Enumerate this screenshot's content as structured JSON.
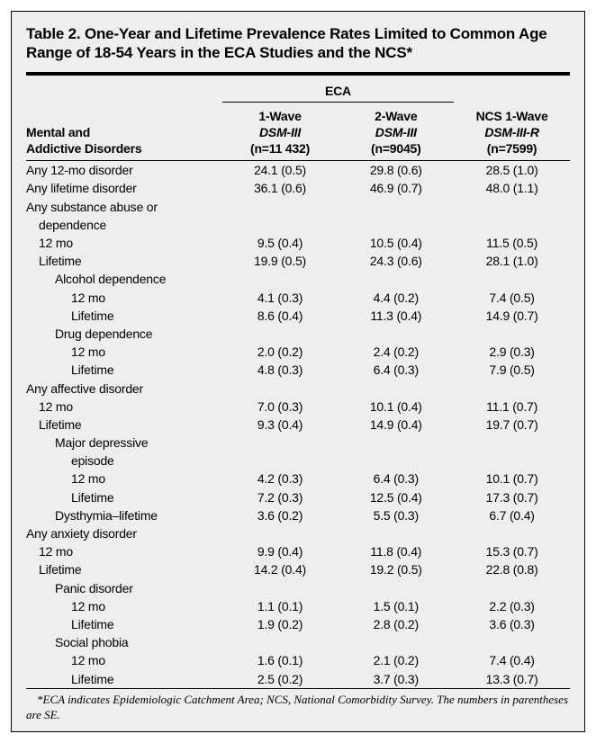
{
  "title": "Table 2. One-Year and Lifetime Prevalence Rates Limited to Common Age Range of 18-54 Years in the ECA Studies and the NCS*",
  "spanner": "ECA",
  "rowhead": [
    "Mental and",
    "Addictive Disorders"
  ],
  "cols": [
    {
      "l1": "1-Wave",
      "l2": "DSM-III",
      "l3": "(n=11 432)"
    },
    {
      "l1": "2-Wave",
      "l2": "DSM-III",
      "l3": "(n=9045)"
    },
    {
      "l1": "NCS 1-Wave",
      "l2": "DSM-III-R",
      "l3": "(n=7599)"
    }
  ],
  "rows": [
    {
      "label": "Any 12-mo disorder",
      "ind": 0,
      "v": [
        "24.1 (0.5)",
        "29.8 (0.6)",
        "28.5 (1.0)"
      ]
    },
    {
      "label": "Any lifetime disorder",
      "ind": 0,
      "v": [
        "36.1 (0.6)",
        "46.9 (0.7)",
        "48.0 (1.1)"
      ]
    },
    {
      "label": "Any substance abuse or",
      "ind": 0,
      "v": [
        "",
        "",
        ""
      ]
    },
    {
      "label": "dependence",
      "ind": 1,
      "v": [
        "",
        "",
        ""
      ]
    },
    {
      "label": "12 mo",
      "ind": 1,
      "v": [
        "9.5 (0.4)",
        "10.5 (0.4)",
        "11.5 (0.5)"
      ]
    },
    {
      "label": "Lifetime",
      "ind": 1,
      "v": [
        "19.9 (0.5)",
        "24.3 (0.6)",
        "28.1 (1.0)"
      ]
    },
    {
      "label": "Alcohol dependence",
      "ind": 2,
      "v": [
        "",
        "",
        ""
      ]
    },
    {
      "label": "12 mo",
      "ind": 3,
      "v": [
        "4.1 (0.3)",
        "4.4 (0.2)",
        "7.4 (0.5)"
      ]
    },
    {
      "label": "Lifetime",
      "ind": 3,
      "v": [
        "8.6 (0.4)",
        "11.3 (0.4)",
        "14.9 (0.7)"
      ]
    },
    {
      "label": "Drug dependence",
      "ind": 2,
      "v": [
        "",
        "",
        ""
      ]
    },
    {
      "label": "12 mo",
      "ind": 3,
      "v": [
        "2.0 (0.2)",
        "2.4 (0.2)",
        "2.9 (0.3)"
      ]
    },
    {
      "label": "Lifetime",
      "ind": 3,
      "v": [
        "4.8 (0.3)",
        "6.4 (0.3)",
        "7.9 (0.5)"
      ]
    },
    {
      "label": "Any affective disorder",
      "ind": 0,
      "v": [
        "",
        "",
        ""
      ]
    },
    {
      "label": "12 mo",
      "ind": 1,
      "v": [
        "7.0 (0.3)",
        "10.1 (0.4)",
        "11.1 (0.7)"
      ]
    },
    {
      "label": "Lifetime",
      "ind": 1,
      "v": [
        "9.3 (0.4)",
        "14.9 (0.4)",
        "19.7 (0.7)"
      ]
    },
    {
      "label": "Major depressive",
      "ind": 2,
      "v": [
        "",
        "",
        ""
      ]
    },
    {
      "label": "episode",
      "ind": 3,
      "v": [
        "",
        "",
        ""
      ]
    },
    {
      "label": "12 mo",
      "ind": 3,
      "v": [
        "4.2 (0.3)",
        "6.4 (0.3)",
        "10.1 (0.7)"
      ]
    },
    {
      "label": "Lifetime",
      "ind": 3,
      "v": [
        "7.2 (0.3)",
        "12.5 (0.4)",
        "17.3 (0.7)"
      ]
    },
    {
      "label": "Dysthymia–lifetime",
      "ind": 2,
      "v": [
        "3.6 (0.2)",
        "5.5 (0.3)",
        "6.7 (0.4)"
      ]
    },
    {
      "label": "Any anxiety disorder",
      "ind": 0,
      "v": [
        "",
        "",
        ""
      ]
    },
    {
      "label": "12 mo",
      "ind": 1,
      "v": [
        "9.9 (0.4)",
        "11.8 (0.4)",
        "15.3 (0.7)"
      ]
    },
    {
      "label": "Lifetime",
      "ind": 1,
      "v": [
        "14.2 (0.4)",
        "19.2 (0.5)",
        "22.8 (0.8)"
      ]
    },
    {
      "label": "Panic disorder",
      "ind": 2,
      "v": [
        "",
        "",
        ""
      ]
    },
    {
      "label": "12 mo",
      "ind": 3,
      "v": [
        "1.1 (0.1)",
        "1.5 (0.1)",
        "2.2 (0.3)"
      ]
    },
    {
      "label": "Lifetime",
      "ind": 3,
      "v": [
        "1.9 (0.2)",
        "2.8 (0.2)",
        "3.6 (0.3)"
      ]
    },
    {
      "label": "Social phobia",
      "ind": 2,
      "v": [
        "",
        "",
        ""
      ]
    },
    {
      "label": "12 mo",
      "ind": 3,
      "v": [
        "1.6 (0.1)",
        "2.1 (0.2)",
        "7.4 (0.4)"
      ]
    },
    {
      "label": "Lifetime",
      "ind": 3,
      "v": [
        "2.5 (0.2)",
        "3.7 (0.3)",
        "13.3 (0.7)"
      ]
    }
  ],
  "footnote": "*ECA indicates Epidemiologic Catchment Area; NCS, National Comorbidity Survey. The numbers in parentheses are SE.",
  "colors": {
    "background": "#eeeeee",
    "border": "#000000",
    "text": "#000000"
  },
  "fontsize": {
    "title": 17,
    "body": 14,
    "footnote": 13
  }
}
